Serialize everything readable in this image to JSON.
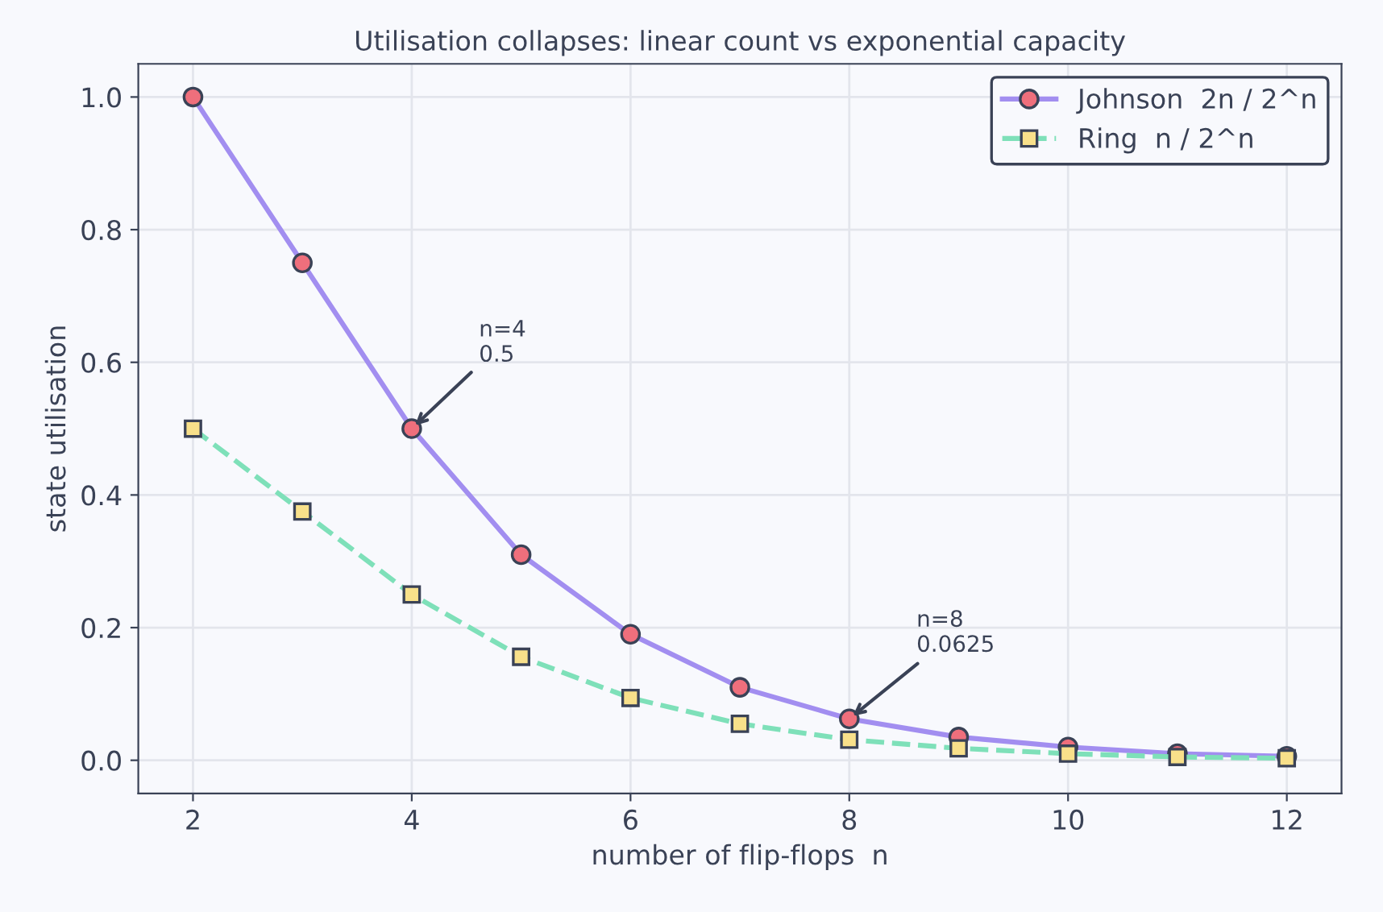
{
  "chart_data": {
    "type": "line",
    "title": "Utilisation collapses: linear count vs exponential capacity",
    "xlabel": "number of flip-flops  n",
    "ylabel": "state utilisation",
    "x": [
      2,
      3,
      4,
      5,
      6,
      7,
      8,
      9,
      10,
      11,
      12
    ],
    "series": [
      {
        "name": "Johnson  2n / 2^n",
        "color": "#a28ef0",
        "marker": "circle",
        "line_style": "solid",
        "values": [
          1.0,
          0.75,
          0.5,
          0.31,
          0.19,
          0.11,
          0.0625,
          0.035,
          0.02,
          0.01,
          0.006
        ]
      },
      {
        "name": "Ring  n / 2^n",
        "color": "#7ee0b9",
        "marker": "square",
        "line_style": "dashed",
        "values": [
          0.5,
          0.375,
          0.25,
          0.156,
          0.094,
          0.055,
          0.031,
          0.018,
          0.01,
          0.005,
          0.003
        ]
      }
    ],
    "annotations": [
      {
        "text": "n=4\n0.5",
        "x": 4,
        "y": 0.5
      },
      {
        "text": "n=8\n0.0625",
        "x": 8,
        "y": 0.0625
      }
    ],
    "xlim": [
      1.5,
      12.5
    ],
    "ylim": [
      -0.05,
      1.05
    ],
    "xticks": [
      2,
      4,
      6,
      8,
      10,
      12
    ],
    "yticks": [
      {
        "value": 0,
        "label": "0.0"
      },
      0.2,
      0.4,
      0.6,
      0.8,
      {
        "value": 1,
        "label": "1.0"
      }
    ],
    "grid": true,
    "legend": "top right"
  }
}
